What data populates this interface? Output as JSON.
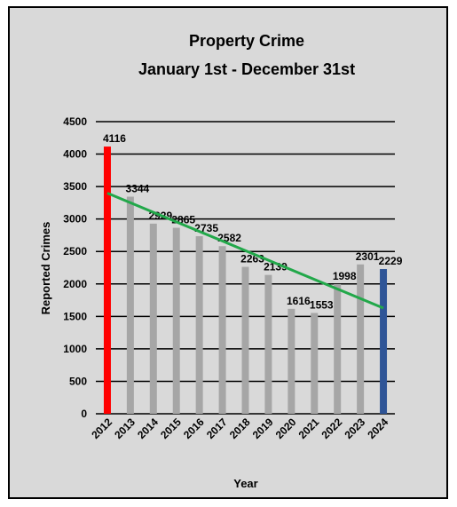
{
  "chart_data": {
    "type": "bar",
    "title": "Property Crime",
    "subtitle": "January 1st - December 31st",
    "y_label": "Reported Crimes",
    "x_label": "Year",
    "categories": [
      "2012",
      "2013",
      "2014",
      "2015",
      "2016",
      "2017",
      "2018",
      "2019",
      "2020",
      "2021",
      "2022",
      "2023",
      "2024"
    ],
    "values": [
      4116,
      3344,
      2929,
      2865,
      2735,
      2582,
      2263,
      2139,
      1616,
      1553,
      1998,
      2301,
      2229
    ],
    "colors": [
      "#ff0000",
      "#a6a6a6",
      "#a6a6a6",
      "#a6a6a6",
      "#a6a6a6",
      "#a6a6a6",
      "#a6a6a6",
      "#a6a6a6",
      "#a6a6a6",
      "#a6a6a6",
      "#a6a6a6",
      "#a6a6a6",
      "#2f5597"
    ],
    "ylim": [
      0,
      4500
    ],
    "yticks": [
      0,
      500,
      1000,
      1500,
      2000,
      2500,
      3000,
      3500,
      4000,
      4500
    ],
    "grid": true,
    "trendline": true,
    "trendline_color": "#22a84a"
  }
}
